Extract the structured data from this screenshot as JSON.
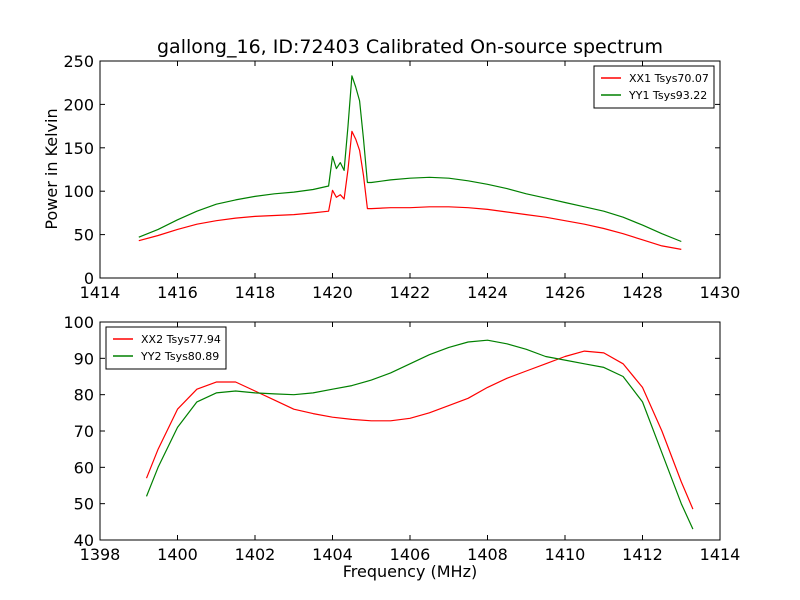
{
  "chart_data": [
    {
      "type": "line",
      "title": "gallong_16, ID:72403 Calibrated On-source spectrum",
      "xlabel": "",
      "ylabel": "Power in Kelvin",
      "xlim": [
        1414,
        1430
      ],
      "ylim": [
        0,
        250
      ],
      "xticks": [
        "1414",
        "1416",
        "1418",
        "1420",
        "1422",
        "1424",
        "1426",
        "1428",
        "1430"
      ],
      "yticks": [
        "0",
        "50",
        "100",
        "150",
        "200",
        "250"
      ],
      "legend_position": "top-right",
      "series": [
        {
          "name": "XX1 Tsys70.07",
          "color": "#ff0000",
          "points": [
            [
              1415.0,
              43
            ],
            [
              1415.5,
              49
            ],
            [
              1416.0,
              56
            ],
            [
              1416.5,
              62
            ],
            [
              1417.0,
              66
            ],
            [
              1417.5,
              69
            ],
            [
              1418.0,
              71
            ],
            [
              1418.5,
              72
            ],
            [
              1419.0,
              73
            ],
            [
              1419.5,
              75
            ],
            [
              1419.9,
              77
            ],
            [
              1420.0,
              101
            ],
            [
              1420.1,
              93
            ],
            [
              1420.2,
              96
            ],
            [
              1420.3,
              91
            ],
            [
              1420.4,
              125
            ],
            [
              1420.5,
              169
            ],
            [
              1420.6,
              160
            ],
            [
              1420.7,
              147
            ],
            [
              1420.8,
              118
            ],
            [
              1420.9,
              80
            ],
            [
              1421.0,
              80
            ],
            [
              1421.5,
              81
            ],
            [
              1422.0,
              81
            ],
            [
              1422.5,
              82
            ],
            [
              1423.0,
              82
            ],
            [
              1423.5,
              81
            ],
            [
              1424.0,
              79
            ],
            [
              1424.5,
              76
            ],
            [
              1425.0,
              73
            ],
            [
              1425.5,
              70
            ],
            [
              1426.0,
              66
            ],
            [
              1426.5,
              62
            ],
            [
              1427.0,
              57
            ],
            [
              1427.5,
              51
            ],
            [
              1428.0,
              44
            ],
            [
              1428.5,
              37
            ],
            [
              1429.0,
              33
            ]
          ]
        },
        {
          "name": "YY1 Tsys93.22",
          "color": "#008000",
          "points": [
            [
              1415.0,
              47
            ],
            [
              1415.5,
              56
            ],
            [
              1416.0,
              67
            ],
            [
              1416.5,
              77
            ],
            [
              1417.0,
              85
            ],
            [
              1417.5,
              90
            ],
            [
              1418.0,
              94
            ],
            [
              1418.5,
              97
            ],
            [
              1419.0,
              99
            ],
            [
              1419.5,
              102
            ],
            [
              1419.9,
              106
            ],
            [
              1420.0,
              140
            ],
            [
              1420.1,
              126
            ],
            [
              1420.2,
              133
            ],
            [
              1420.3,
              124
            ],
            [
              1420.4,
              175
            ],
            [
              1420.5,
              233
            ],
            [
              1420.6,
              220
            ],
            [
              1420.7,
              204
            ],
            [
              1420.8,
              160
            ],
            [
              1420.9,
              110
            ],
            [
              1421.0,
              110
            ],
            [
              1421.5,
              113
            ],
            [
              1422.0,
              115
            ],
            [
              1422.5,
              116
            ],
            [
              1423.0,
              115
            ],
            [
              1423.5,
              112
            ],
            [
              1424.0,
              108
            ],
            [
              1424.5,
              103
            ],
            [
              1425.0,
              97
            ],
            [
              1425.5,
              92
            ],
            [
              1426.0,
              87
            ],
            [
              1426.5,
              82
            ],
            [
              1427.0,
              77
            ],
            [
              1427.5,
              70
            ],
            [
              1428.0,
              61
            ],
            [
              1428.5,
              51
            ],
            [
              1429.0,
              42
            ]
          ]
        }
      ]
    },
    {
      "type": "line",
      "title": "",
      "xlabel": "Frequency (MHz)",
      "ylabel": "",
      "xlim": [
        1398,
        1414
      ],
      "ylim": [
        40,
        100
      ],
      "xticks": [
        "1398",
        "1400",
        "1402",
        "1404",
        "1406",
        "1408",
        "1410",
        "1412",
        "1414"
      ],
      "yticks": [
        "40",
        "50",
        "60",
        "70",
        "80",
        "90",
        "100"
      ],
      "legend_position": "top-left",
      "series": [
        {
          "name": "XX2 Tsys77.94",
          "color": "#ff0000",
          "points": [
            [
              1399.2,
              57
            ],
            [
              1399.5,
              65
            ],
            [
              1400.0,
              76
            ],
            [
              1400.5,
              81.5
            ],
            [
              1401.0,
              83.5
            ],
            [
              1401.5,
              83.5
            ],
            [
              1402.0,
              81
            ],
            [
              1402.5,
              78.5
            ],
            [
              1403.0,
              76
            ],
            [
              1403.5,
              74.8
            ],
            [
              1404.0,
              73.8
            ],
            [
              1404.5,
              73.2
            ],
            [
              1405.0,
              72.8
            ],
            [
              1405.5,
              72.8
            ],
            [
              1406.0,
              73.5
            ],
            [
              1406.5,
              75
            ],
            [
              1407.0,
              77
            ],
            [
              1407.5,
              79
            ],
            [
              1408.0,
              82
            ],
            [
              1408.5,
              84.5
            ],
            [
              1409.0,
              86.5
            ],
            [
              1409.5,
              88.5
            ],
            [
              1410.0,
              90.5
            ],
            [
              1410.5,
              92
            ],
            [
              1411.0,
              91.5
            ],
            [
              1411.5,
              88.5
            ],
            [
              1412.0,
              82
            ],
            [
              1412.5,
              70
            ],
            [
              1413.0,
              56
            ],
            [
              1413.3,
              48.5
            ]
          ]
        },
        {
          "name": "YY2 Tsys80.89",
          "color": "#008000",
          "points": [
            [
              1399.2,
              52
            ],
            [
              1399.5,
              60
            ],
            [
              1400.0,
              71
            ],
            [
              1400.5,
              78
            ],
            [
              1401.0,
              80.5
            ],
            [
              1401.5,
              81
            ],
            [
              1402.0,
              80.5
            ],
            [
              1402.5,
              80.2
            ],
            [
              1403.0,
              80
            ],
            [
              1403.5,
              80.5
            ],
            [
              1404.0,
              81.5
            ],
            [
              1404.5,
              82.5
            ],
            [
              1405.0,
              84
            ],
            [
              1405.5,
              86
            ],
            [
              1406.0,
              88.5
            ],
            [
              1406.5,
              91
            ],
            [
              1407.0,
              93
            ],
            [
              1407.5,
              94.5
            ],
            [
              1408.0,
              95
            ],
            [
              1408.5,
              94
            ],
            [
              1409.0,
              92.5
            ],
            [
              1409.5,
              90.5
            ],
            [
              1410.0,
              89.5
            ],
            [
              1410.5,
              88.5
            ],
            [
              1411.0,
              87.5
            ],
            [
              1411.5,
              85
            ],
            [
              1412.0,
              78
            ],
            [
              1412.5,
              64
            ],
            [
              1413.0,
              50
            ],
            [
              1413.3,
              43
            ]
          ]
        }
      ]
    }
  ]
}
